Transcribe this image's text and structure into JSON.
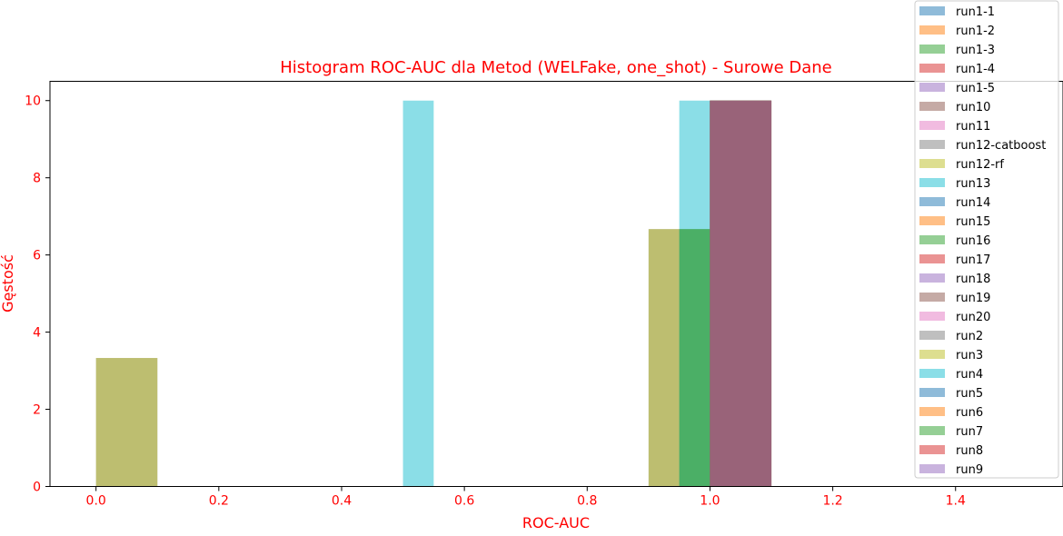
{
  "chart_data": {
    "type": "bar",
    "title": "Histogram ROC-AUC dla Metod (WELFake, one_shot) - Surowe Dane",
    "xlabel": "ROC-AUC",
    "ylabel": "Gęstość",
    "xlim": [
      -0.075,
      1.575
    ],
    "ylim": [
      0,
      10.5
    ],
    "xticks": [
      0.0,
      0.2,
      0.4,
      0.6,
      0.8,
      1.0,
      1.2,
      1.4
    ],
    "xtick_labels": [
      "0.0",
      "0.2",
      "0.4",
      "0.6",
      "0.8",
      "1.0",
      "1.2",
      "1.4"
    ],
    "yticks": [
      0,
      2,
      4,
      6,
      8,
      10
    ],
    "ytick_labels": [
      "0",
      "2",
      "4",
      "6",
      "8",
      "10"
    ],
    "grid": false,
    "legend_position": "top-right",
    "series": [
      {
        "name": "run1-1",
        "color": "#1f77b4",
        "bins": [
          {
            "x0": 1.0,
            "x1": 1.1,
            "y": 10
          }
        ]
      },
      {
        "name": "run1-2",
        "color": "#ff7f0e",
        "bins": [
          {
            "x0": 1.0,
            "x1": 1.1,
            "y": 10
          }
        ]
      },
      {
        "name": "run1-3",
        "color": "#2ca02c",
        "bins": [
          {
            "x0": 1.0,
            "x1": 1.1,
            "y": 10
          }
        ]
      },
      {
        "name": "run1-4",
        "color": "#d62728",
        "bins": [
          {
            "x0": 1.0,
            "x1": 1.1,
            "y": 10
          }
        ]
      },
      {
        "name": "run1-5",
        "color": "#9467bd",
        "bins": [
          {
            "x0": 1.0,
            "x1": 1.1,
            "y": 10
          }
        ]
      },
      {
        "name": "run10",
        "color": "#8c564b",
        "bins": [
          {
            "x0": 1.0,
            "x1": 1.1,
            "y": 10
          }
        ]
      },
      {
        "name": "run11",
        "color": "#e377c2",
        "bins": [
          {
            "x0": 1.0,
            "x1": 1.1,
            "y": 10
          }
        ]
      },
      {
        "name": "run12-catboost",
        "color": "#7f7f7f",
        "bins": [
          {
            "x0": 0.0,
            "x1": 0.1,
            "y": 3.33
          },
          {
            "x0": 0.9,
            "x1": 1.0,
            "y": 6.67
          }
        ]
      },
      {
        "name": "run12-rf",
        "color": "#bcbd22",
        "bins": [
          {
            "x0": 0.0,
            "x1": 0.1,
            "y": 3.33
          },
          {
            "x0": 0.9,
            "x1": 1.0,
            "y": 6.67
          }
        ]
      },
      {
        "name": "run13",
        "color": "#17becf",
        "bins": [
          {
            "x0": 0.5,
            "x1": 0.55,
            "y": 10
          },
          {
            "x0": 0.95,
            "x1": 1.0,
            "y": 10
          }
        ]
      },
      {
        "name": "run14",
        "color": "#1f77b4",
        "bins": [
          {
            "x0": 1.0,
            "x1": 1.1,
            "y": 10
          }
        ]
      },
      {
        "name": "run15",
        "color": "#ff7f0e",
        "bins": [
          {
            "x0": 1.0,
            "x1": 1.1,
            "y": 10
          }
        ]
      },
      {
        "name": "run16",
        "color": "#2ca02c",
        "bins": [
          {
            "x0": 0.95,
            "x1": 1.0,
            "y": 6.67
          }
        ]
      },
      {
        "name": "run17",
        "color": "#d62728",
        "bins": [
          {
            "x0": 1.0,
            "x1": 1.1,
            "y": 10
          }
        ]
      },
      {
        "name": "run18",
        "color": "#9467bd",
        "bins": [
          {
            "x0": 1.0,
            "x1": 1.1,
            "y": 10
          }
        ]
      },
      {
        "name": "run19",
        "color": "#8c564b",
        "bins": [
          {
            "x0": 1.0,
            "x1": 1.1,
            "y": 10
          }
        ]
      },
      {
        "name": "run20",
        "color": "#e377c2",
        "bins": [
          {
            "x0": 1.0,
            "x1": 1.1,
            "y": 10
          }
        ]
      },
      {
        "name": "run2",
        "color": "#7f7f7f",
        "bins": [
          {
            "x0": 1.0,
            "x1": 1.1,
            "y": 10
          }
        ]
      },
      {
        "name": "run3",
        "color": "#bcbd22",
        "bins": [
          {
            "x0": 1.0,
            "x1": 1.1,
            "y": 10
          }
        ]
      },
      {
        "name": "run4",
        "color": "#17becf",
        "bins": [
          {
            "x0": 1.0,
            "x1": 1.1,
            "y": 10
          }
        ]
      },
      {
        "name": "run5",
        "color": "#1f77b4",
        "bins": [
          {
            "x0": 1.0,
            "x1": 1.1,
            "y": 10
          }
        ]
      },
      {
        "name": "run6",
        "color": "#ff7f0e",
        "bins": [
          {
            "x0": 1.0,
            "x1": 1.1,
            "y": 10
          }
        ]
      },
      {
        "name": "run7",
        "color": "#2ca02c",
        "bins": [
          {
            "x0": 1.0,
            "x1": 1.1,
            "y": 10
          }
        ]
      },
      {
        "name": "run8",
        "color": "#d62728",
        "bins": [
          {
            "x0": 1.0,
            "x1": 1.1,
            "y": 10
          }
        ]
      },
      {
        "name": "run9",
        "color": "#9467bd",
        "bins": [
          {
            "x0": 1.0,
            "x1": 1.1,
            "y": 10
          }
        ]
      }
    ]
  },
  "colors": {
    "text_accent": "#ff0000",
    "axis": "#000000",
    "background": "#ffffff"
  }
}
